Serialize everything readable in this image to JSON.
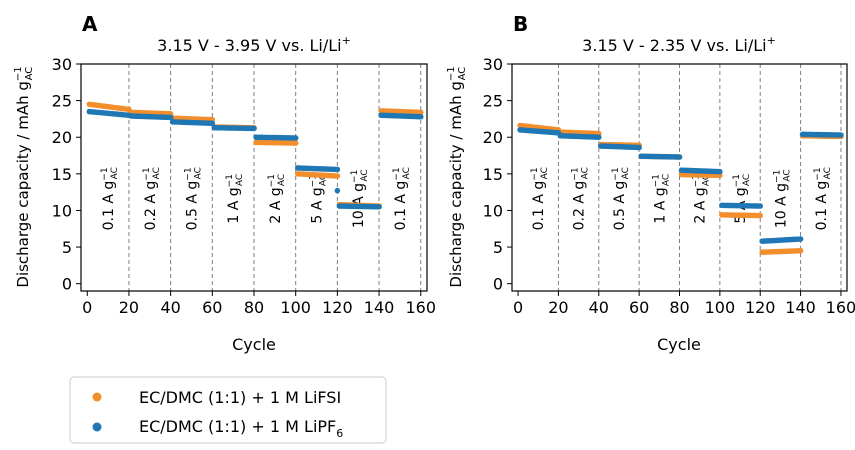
{
  "panels": [
    {
      "letter": "A",
      "title": "3.15 V - 3.95 V vs. Li/Li",
      "title_sup": "+"
    },
    {
      "letter": "B",
      "title": "3.15 V - 2.35 V vs. Li/Li",
      "title_sup": "+"
    }
  ],
  "legend": {
    "entries": [
      {
        "text": "EC/DMC (1:1) + 1 M LiFSI",
        "sub": "",
        "color": "#f28e2b"
      },
      {
        "text": "EC/DMC (1:1) + 1 M LiPF",
        "sub": "6",
        "color": "#1f77b4"
      }
    ]
  },
  "chart_data": [
    {
      "type": "scatter",
      "xlabel": "Cycle",
      "ylabel_main": "Discharge capacity / mAh g",
      "ylabel_sup": "−1",
      "ylabel_sub": "AC",
      "xlim": [
        -3,
        163
      ],
      "ylim": [
        -1,
        30
      ],
      "xticks": [
        0,
        20,
        40,
        60,
        80,
        100,
        120,
        140,
        160
      ],
      "yticks": [
        0,
        5,
        10,
        15,
        20,
        25,
        30
      ],
      "dividers": [
        20,
        40,
        60,
        80,
        100,
        120,
        140,
        160
      ],
      "rate_labels": [
        {
          "label": "0.1 A g",
          "x": 10
        },
        {
          "label": "0.2 A g",
          "x": 30
        },
        {
          "label": "0.5 A g",
          "x": 50
        },
        {
          "label": "1 A g",
          "x": 70
        },
        {
          "label": "2 A g",
          "x": 90
        },
        {
          "label": "5 A g",
          "x": 110
        },
        {
          "label": "10 A g",
          "x": 130
        },
        {
          "label": "0.1 A g",
          "x": 150
        }
      ],
      "series": [
        {
          "name": "EC/DMC (1:1) + 1 M LiFSI",
          "color": "#f28e2b",
          "segments": [
            [
              24.5,
              23.8
            ],
            [
              23.4,
              23.2
            ],
            [
              22.6,
              22.4
            ],
            [
              21.4,
              21.3
            ],
            [
              19.3,
              19.2
            ],
            [
              15.0,
              14.7
            ],
            [
              10.8,
              10.6
            ],
            [
              23.6,
              23.4
            ]
          ]
        },
        {
          "name": "EC/DMC (1:1) + 1 M LiPF6",
          "color": "#1f77b4",
          "segments": [
            [
              23.5,
              23.0
            ],
            [
              22.9,
              22.7
            ],
            [
              22.1,
              21.9
            ],
            [
              21.3,
              21.2
            ],
            [
              20.0,
              19.9
            ],
            [
              15.8,
              15.6
            ],
            [
              10.6,
              10.5
            ],
            [
              23.0,
              22.8
            ]
          ]
        }
      ],
      "extra_points": [
        {
          "series": 1,
          "x": 120,
          "y": 12.7
        }
      ]
    },
    {
      "type": "scatter",
      "xlabel": "Cycle",
      "ylabel_main": "Discharge capacity / mAh g",
      "ylabel_sup": "−1",
      "ylabel_sub": "AC",
      "xlim": [
        -3,
        163
      ],
      "ylim": [
        -1,
        30
      ],
      "xticks": [
        0,
        20,
        40,
        60,
        80,
        100,
        120,
        140,
        160
      ],
      "yticks": [
        0,
        5,
        10,
        15,
        20,
        25,
        30
      ],
      "dividers": [
        20,
        40,
        60,
        80,
        100,
        120,
        140,
        160
      ],
      "rate_labels": [
        {
          "label": "0.1 A g",
          "x": 10
        },
        {
          "label": "0.2 A g",
          "x": 30
        },
        {
          "label": "0.5 A g",
          "x": 50
        },
        {
          "label": "1 A g",
          "x": 70
        },
        {
          "label": "2 A g",
          "x": 90
        },
        {
          "label": "5 A g",
          "x": 110
        },
        {
          "label": "10 A g",
          "x": 130
        },
        {
          "label": "0.1 A g",
          "x": 150
        }
      ],
      "series": [
        {
          "name": "EC/DMC (1:1) + 1 M LiFSI",
          "color": "#f28e2b",
          "segments": [
            [
              21.6,
              21.0
            ],
            [
              20.7,
              20.5
            ],
            [
              19.0,
              18.9
            ],
            [
              17.4,
              17.3
            ],
            [
              14.9,
              14.8
            ],
            [
              9.4,
              9.3
            ],
            [
              4.3,
              4.5
            ],
            [
              20.2,
              20.1
            ]
          ]
        },
        {
          "name": "EC/DMC (1:1) + 1 M LiPF6",
          "color": "#1f77b4",
          "segments": [
            [
              21.0,
              20.6
            ],
            [
              20.2,
              20.0
            ],
            [
              18.8,
              18.6
            ],
            [
              17.4,
              17.3
            ],
            [
              15.5,
              15.3
            ],
            [
              10.7,
              10.6
            ],
            [
              5.8,
              6.1
            ],
            [
              20.4,
              20.3
            ]
          ]
        }
      ],
      "extra_points": []
    }
  ]
}
